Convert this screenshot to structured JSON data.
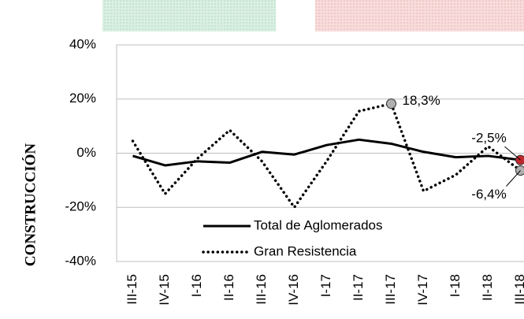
{
  "chart_data": {
    "type": "line",
    "y_label": "CONSTRUCCIÓN",
    "categories": [
      "III-15",
      "IV-15",
      "I-16",
      "II-16",
      "III-16",
      "IV-16",
      "I-17",
      "II-17",
      "III-17",
      "IV-17",
      "I-18",
      "II-18",
      "III-18"
    ],
    "series": [
      {
        "name": "Total de Aglomerados",
        "color": "#000000",
        "line_style": "solid",
        "values": [
          -1,
          -4.5,
          -3,
          -3.5,
          0.5,
          -0.5,
          3,
          5,
          3.5,
          0.5,
          -1.5,
          -1,
          -2.5
        ],
        "value_labels": [
          null,
          null,
          null,
          null,
          null,
          null,
          null,
          null,
          null,
          null,
          null,
          null,
          "-2,5%"
        ],
        "marker_color": "#c0282d"
      },
      {
        "name": "Gran Resistencia",
        "color": "#000000",
        "line_style": "dotted",
        "values": [
          4.5,
          -15,
          -2,
          8.5,
          -3,
          -20,
          -3,
          15.5,
          18.3,
          -14,
          -8,
          2.5,
          -6.4
        ],
        "value_labels": [
          null,
          null,
          null,
          null,
          null,
          null,
          null,
          null,
          "18,3%",
          null,
          null,
          null,
          "-6,4%"
        ],
        "marker_color": "#b0b0b0"
      }
    ],
    "ylim": [
      -40,
      40
    ],
    "yticks": [
      {
        "value": -40,
        "label": "-40%"
      },
      {
        "value": -20,
        "label": "-20%"
      },
      {
        "value": 0,
        "label": "0%"
      },
      {
        "value": 20,
        "label": "20%"
      },
      {
        "value": 40,
        "label": "40%"
      }
    ],
    "grid": true
  }
}
